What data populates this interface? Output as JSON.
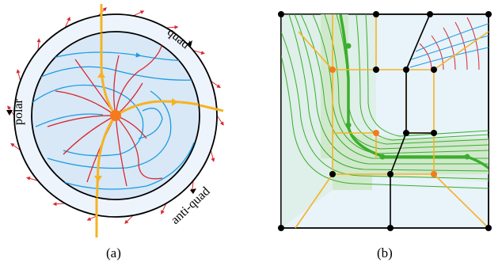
{
  "panels": [
    {
      "id": "a",
      "caption": "(a)",
      "ring_labels": [
        "quad",
        "polar",
        "anti-quad"
      ]
    },
    {
      "id": "b",
      "caption": "(b)"
    }
  ],
  "colors": {
    "ring_fill": "#eef4fb",
    "disk_fill": "#d8e8f6",
    "separatrix": "#f5b324",
    "red_curves": "#d9282f",
    "blue_curves": "#1a9be0",
    "singular_point": "#f47a1c",
    "panel_b_fill": "#e8f3fa",
    "green_region": "#cfe9c9",
    "green_lines": "#3aae2c",
    "orange_edges": "#f5b324",
    "black_vertex": "#000000",
    "orange_vertex": "#f47a1c"
  }
}
